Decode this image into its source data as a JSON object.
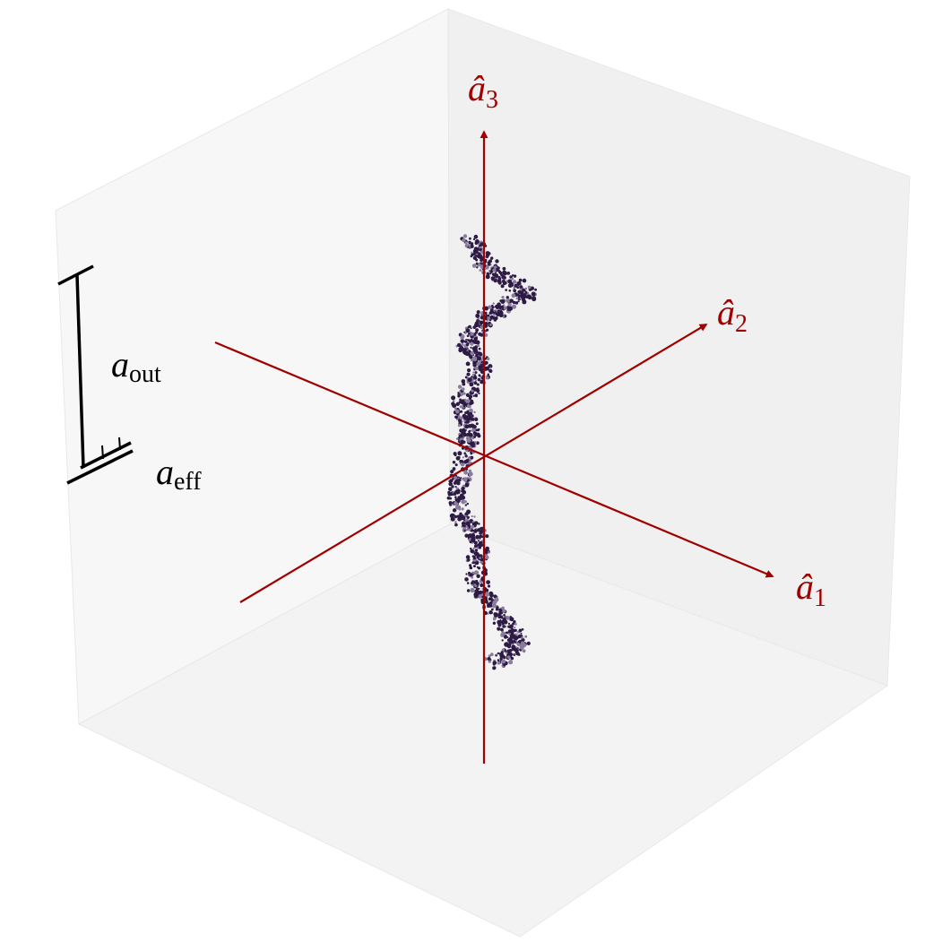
{
  "axes": [
    {
      "symbol": "â",
      "sub": "1"
    },
    {
      "symbol": "â",
      "sub": "2"
    },
    {
      "symbol": "â",
      "sub": "3"
    }
  ],
  "scale_bars": [
    {
      "symbol": "a",
      "sub": "out"
    },
    {
      "symbol": "a",
      "sub": "eff"
    }
  ]
}
